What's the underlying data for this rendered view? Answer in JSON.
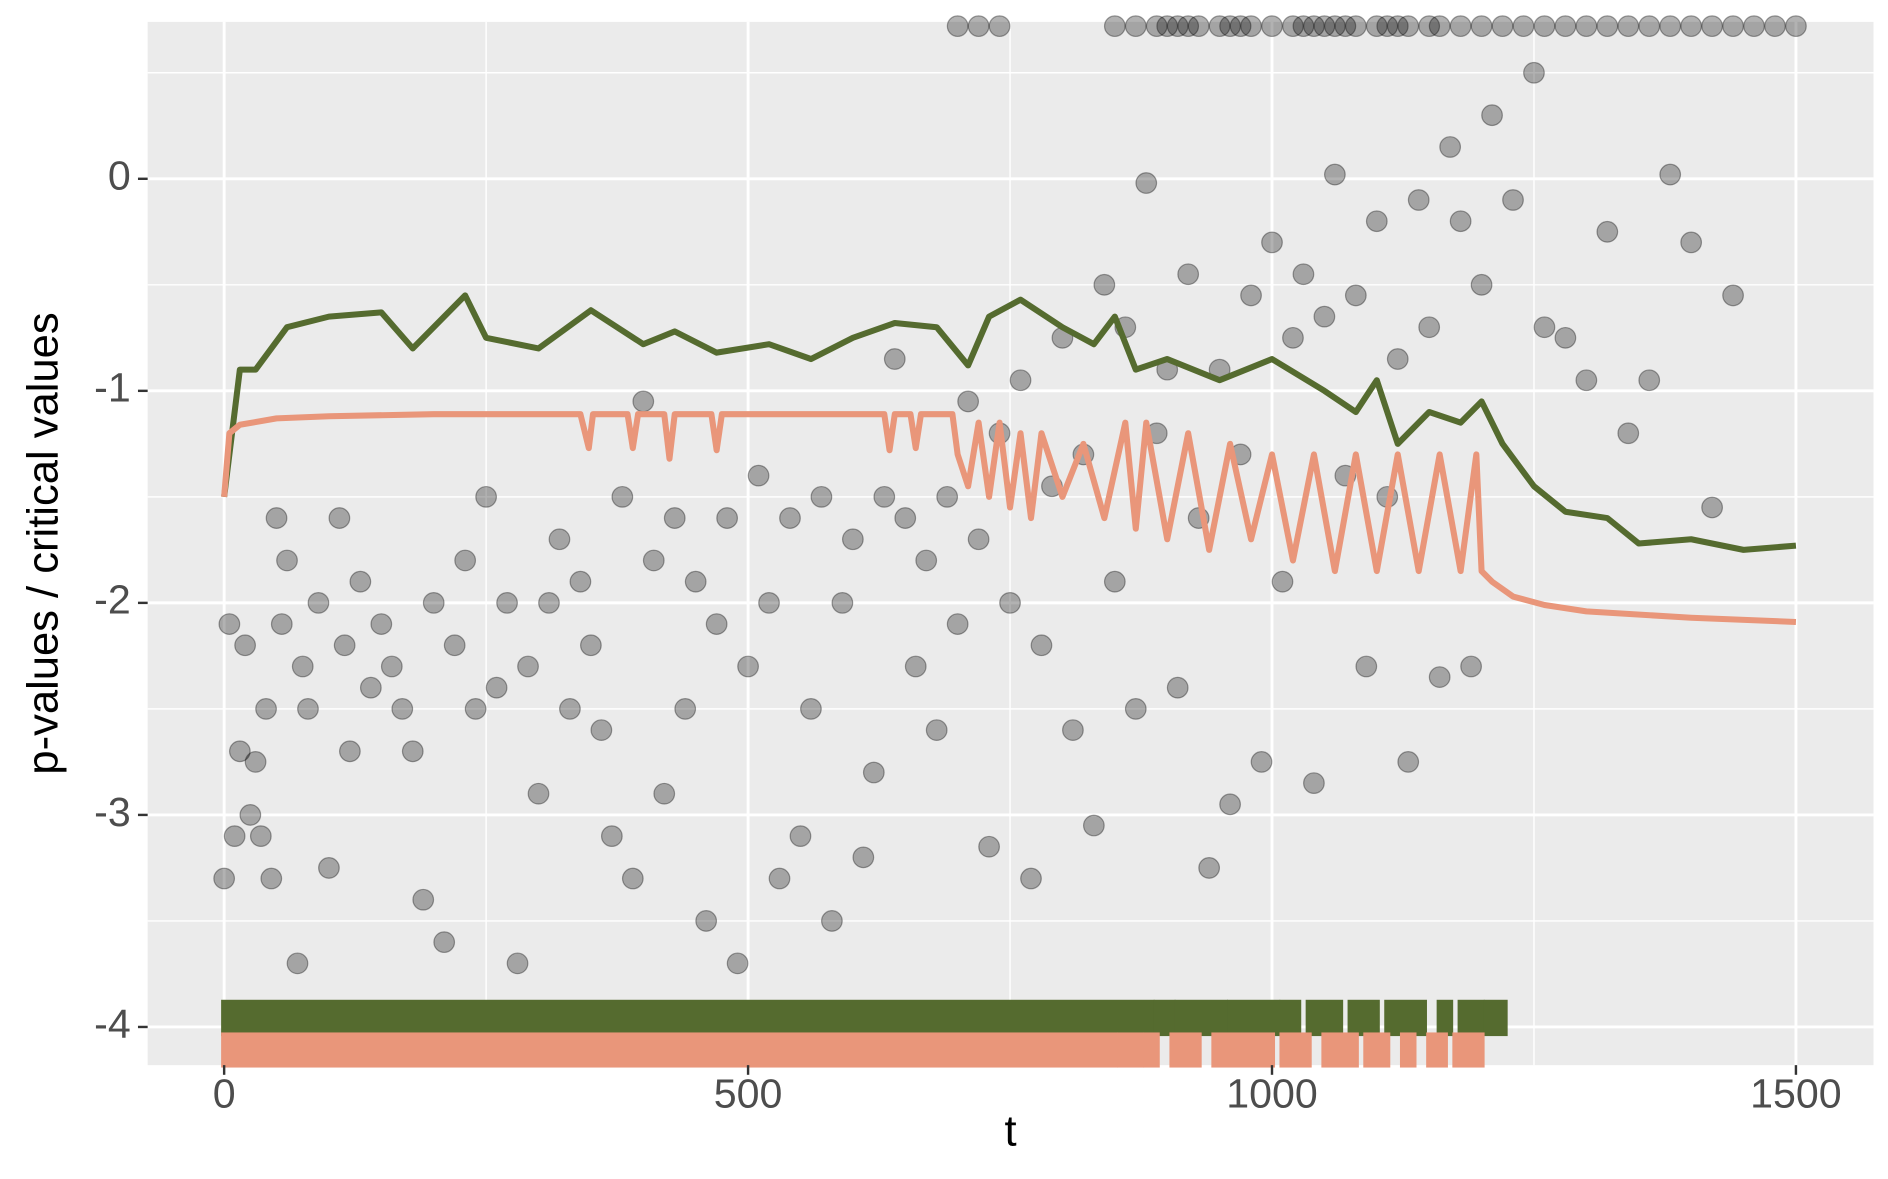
{
  "chart_data": {
    "type": "scatter",
    "x_label": "t",
    "y_label": "p-values / critical values",
    "xlim": [
      -73,
      1574
    ],
    "ylim": [
      -4.18,
      0.74
    ],
    "xticks": [
      0,
      500,
      1000,
      1500
    ],
    "yticks": [
      -4,
      -3,
      -2,
      -1,
      0
    ],
    "grid": true,
    "points": {
      "color": "#000000",
      "x": [
        0,
        5,
        10,
        15,
        20,
        25,
        30,
        35,
        40,
        45,
        50,
        55,
        60,
        70,
        75,
        80,
        90,
        100,
        110,
        115,
        120,
        130,
        140,
        150,
        160,
        170,
        180,
        190,
        200,
        210,
        220,
        230,
        240,
        250,
        260,
        270,
        280,
        290,
        300,
        310,
        320,
        330,
        340,
        350,
        360,
        370,
        380,
        390,
        400,
        410,
        420,
        430,
        440,
        450,
        460,
        470,
        480,
        490,
        500,
        510,
        520,
        530,
        540,
        550,
        560,
        570,
        580,
        590,
        600,
        610,
        620,
        630,
        640,
        650,
        660,
        670,
        680,
        690,
        700,
        710,
        720,
        730,
        740,
        750,
        760,
        770,
        780,
        790,
        800,
        810,
        820,
        830,
        840,
        850,
        860,
        870,
        880,
        890,
        900,
        910,
        920,
        930,
        940,
        950,
        960,
        970,
        980,
        990,
        1000,
        1010,
        1020,
        1030,
        1040,
        1050,
        1060,
        1070,
        1080,
        1090,
        1100,
        1110,
        1120,
        1130,
        1140,
        1150,
        1160,
        1170,
        1180,
        1190,
        1200,
        1210,
        1230,
        1250,
        1260,
        1280,
        1300,
        1320,
        1340,
        1360,
        1380,
        1400,
        1420,
        1440,
        700,
        720,
        740,
        850,
        870,
        890,
        900,
        910,
        920,
        930,
        950,
        960,
        970,
        980,
        1000,
        1020,
        1030,
        1040,
        1050,
        1060,
        1070,
        1080,
        1100,
        1110,
        1120,
        1130,
        1150,
        1160,
        1180,
        1200,
        1220,
        1240,
        1260,
        1280,
        1300,
        1320,
        1340,
        1360,
        1380,
        1400,
        1420,
        1440,
        1460,
        1480,
        1500
      ],
      "values": [
        -3.3,
        -2.1,
        -3.1,
        -2.7,
        -2.2,
        -3.0,
        -2.75,
        -3.1,
        -2.5,
        -3.3,
        -1.6,
        -2.1,
        -1.8,
        -3.7,
        -2.3,
        -2.5,
        -2.0,
        -3.25,
        -1.6,
        -2.2,
        -2.7,
        -1.9,
        -2.4,
        -2.1,
        -2.3,
        -2.5,
        -2.7,
        -3.4,
        -2.0,
        -3.6,
        -2.2,
        -1.8,
        -2.5,
        -1.5,
        -2.4,
        -2.0,
        -3.7,
        -2.3,
        -2.9,
        -2.0,
        -1.7,
        -2.5,
        -1.9,
        -2.2,
        -2.6,
        -3.1,
        -1.5,
        -3.3,
        -1.05,
        -1.8,
        -2.9,
        -1.6,
        -2.5,
        -1.9,
        -3.5,
        -2.1,
        -1.6,
        -3.7,
        -2.3,
        -1.4,
        -2.0,
        -3.3,
        -1.6,
        -3.1,
        -2.5,
        -1.5,
        -3.5,
        -2.0,
        -1.7,
        -3.2,
        -2.8,
        -1.5,
        -0.85,
        -1.6,
        -2.3,
        -1.8,
        -2.6,
        -1.5,
        -2.1,
        -1.05,
        -1.7,
        -3.15,
        -1.2,
        -2.0,
        -0.95,
        -3.3,
        -2.2,
        -1.45,
        -0.75,
        -2.6,
        -1.3,
        -3.05,
        -0.5,
        -1.9,
        -0.7,
        -2.5,
        -0.02,
        -1.2,
        -0.9,
        -2.4,
        -0.45,
        -1.6,
        -3.25,
        -0.9,
        -2.95,
        -1.3,
        -0.55,
        -2.75,
        -0.3,
        -1.9,
        -0.75,
        -0.45,
        -2.85,
        -0.65,
        0.02,
        -1.4,
        -0.55,
        -2.3,
        -0.2,
        -1.5,
        -0.85,
        -2.75,
        -0.1,
        -0.7,
        -2.35,
        0.15,
        -0.2,
        -2.3,
        -0.5,
        0.3,
        -0.1,
        0.5,
        -0.7,
        -0.75,
        -0.95,
        -0.25,
        -1.2,
        -0.95,
        0.02,
        -0.3,
        -1.55,
        -0.55,
        0.72,
        0.72,
        0.72,
        0.72,
        0.72,
        0.72,
        0.72,
        0.72,
        0.72,
        0.72,
        0.72,
        0.72,
        0.72,
        0.72,
        0.72,
        0.72,
        0.72,
        0.72,
        0.72,
        0.72,
        0.72,
        0.72,
        0.72,
        0.72,
        0.72,
        0.72,
        0.72,
        0.72,
        0.72,
        0.72,
        0.72,
        0.72,
        0.72,
        0.72,
        0.72,
        0.72,
        0.72,
        0.72,
        0.72,
        0.72,
        0.72,
        0.72,
        0.72,
        0.72,
        0.72
      ]
    },
    "lines": [
      {
        "color": "#556b2f",
        "x": [
          0,
          15,
          30,
          60,
          100,
          150,
          180,
          230,
          250,
          300,
          350,
          400,
          430,
          470,
          520,
          560,
          600,
          640,
          680,
          710,
          730,
          760,
          800,
          830,
          850,
          870,
          900,
          950,
          1000,
          1050,
          1080,
          1100,
          1120,
          1150,
          1180,
          1200,
          1220,
          1250,
          1280,
          1320,
          1350,
          1400,
          1450,
          1500
        ],
        "values": [
          -1.5,
          -0.9,
          -0.9,
          -0.7,
          -0.65,
          -0.63,
          -0.8,
          -0.55,
          -0.75,
          -0.8,
          -0.62,
          -0.78,
          -0.72,
          -0.82,
          -0.78,
          -0.85,
          -0.75,
          -0.68,
          -0.7,
          -0.88,
          -0.65,
          -0.57,
          -0.7,
          -0.78,
          -0.65,
          -0.9,
          -0.85,
          -0.95,
          -0.85,
          -1.0,
          -1.1,
          -0.95,
          -1.25,
          -1.1,
          -1.15,
          -1.05,
          -1.25,
          -1.45,
          -1.57,
          -1.6,
          -1.72,
          -1.7,
          -1.75,
          -1.73
        ]
      },
      {
        "color": "#e9967a",
        "x": [
          0,
          5,
          15,
          50,
          100,
          200,
          340,
          348,
          352,
          356,
          385,
          390,
          395,
          420,
          425,
          430,
          465,
          470,
          475,
          630,
          635,
          640,
          655,
          660,
          665,
          695,
          700,
          710,
          720,
          730,
          740,
          750,
          760,
          770,
          780,
          800,
          820,
          840,
          860,
          870,
          880,
          900,
          920,
          940,
          960,
          980,
          1000,
          1020,
          1040,
          1060,
          1080,
          1100,
          1120,
          1140,
          1160,
          1180,
          1195,
          1200,
          1210,
          1230,
          1260,
          1300,
          1400,
          1500
        ],
        "values": [
          -1.5,
          -1.2,
          -1.16,
          -1.13,
          -1.12,
          -1.11,
          -1.11,
          -1.27,
          -1.11,
          -1.11,
          -1.11,
          -1.27,
          -1.11,
          -1.11,
          -1.32,
          -1.11,
          -1.11,
          -1.28,
          -1.11,
          -1.11,
          -1.28,
          -1.11,
          -1.11,
          -1.27,
          -1.11,
          -1.11,
          -1.3,
          -1.45,
          -1.15,
          -1.5,
          -1.15,
          -1.55,
          -1.2,
          -1.6,
          -1.2,
          -1.5,
          -1.25,
          -1.6,
          -1.15,
          -1.65,
          -1.15,
          -1.7,
          -1.2,
          -1.75,
          -1.25,
          -1.7,
          -1.3,
          -1.8,
          -1.3,
          -1.85,
          -1.3,
          -1.85,
          -1.3,
          -1.85,
          -1.3,
          -1.85,
          -1.3,
          -1.85,
          -1.9,
          -1.97,
          -2.01,
          -2.04,
          -2.07,
          -2.09
        ]
      }
    ],
    "rugs": [
      {
        "color": "#556b2f",
        "intervals": [
          [
            0,
            885
          ],
          [
            890,
            905
          ],
          [
            910,
            955
          ],
          [
            960,
            1005
          ],
          [
            1010,
            1025
          ],
          [
            1035,
            1065
          ],
          [
            1075,
            1100
          ],
          [
            1110,
            1145
          ],
          [
            1160,
            1170
          ],
          [
            1180,
            1200
          ],
          [
            1205,
            1222
          ]
        ]
      },
      {
        "color": "#e9967a",
        "intervals": [
          [
            0,
            850
          ],
          [
            855,
            875
          ],
          [
            880,
            890
          ],
          [
            905,
            930
          ],
          [
            945,
            1000
          ],
          [
            1010,
            1035
          ],
          [
            1050,
            1080
          ],
          [
            1090,
            1110
          ],
          [
            1125,
            1135
          ],
          [
            1150,
            1165
          ],
          [
            1175,
            1200
          ]
        ]
      }
    ]
  }
}
